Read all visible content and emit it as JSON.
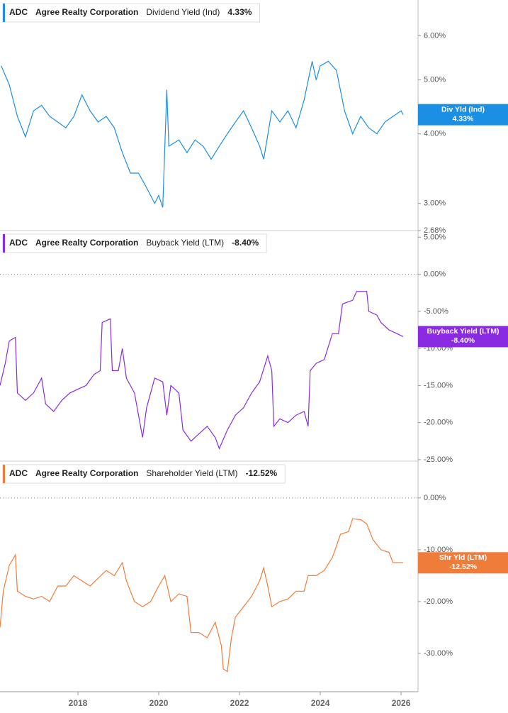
{
  "chart_data": [
    {
      "type": "line",
      "ticker": "ADC",
      "company": "Agree Realty Corporation",
      "log_scale": true,
      "badge_title": "Div Yld (Ind)",
      "last_value": 4.33,
      "last_label": "4.33%",
      "xlim": [
        2016.07,
        2026.42
      ],
      "ylim": [
        2.68,
        6.96
      ],
      "yticks": [
        {
          "value": 6,
          "label": "6.00%"
        },
        {
          "value": 5,
          "label": "5.00%"
        },
        {
          "value": 4,
          "label": "4.00%"
        },
        {
          "value": 3,
          "label": "3.00%"
        },
        {
          "value": 2.68,
          "label": "2.68%"
        }
      ],
      "x": [
        2016.1,
        2016.3,
        2016.5,
        2016.7,
        2016.9,
        2017.1,
        2017.3,
        2017.5,
        2017.7,
        2017.9,
        2018.1,
        2018.3,
        2018.5,
        2018.7,
        2018.9,
        2019.1,
        2019.3,
        2019.5,
        2019.7,
        2019.9,
        2020.0,
        2020.1,
        2020.2,
        2020.25,
        2020.5,
        2020.7,
        2020.9,
        2021.1,
        2021.3,
        2021.5,
        2021.7,
        2021.9,
        2022.1,
        2022.3,
        2022.5,
        2022.6,
        2022.8,
        2023.0,
        2023.2,
        2023.4,
        2023.6,
        2023.8,
        2023.9,
        2024.0,
        2024.2,
        2024.4,
        2024.6,
        2024.8,
        2025.0,
        2025.2,
        2025.4,
        2025.6,
        2025.8,
        2026.0,
        2026.05
      ],
      "series": [
        {
          "name": "Dividend Yield (Ind)",
          "color": "#1a8fe3",
          "values": [
            5.3,
            4.9,
            4.3,
            3.95,
            4.4,
            4.5,
            4.3,
            4.2,
            4.1,
            4.3,
            4.7,
            4.4,
            4.2,
            4.3,
            4.1,
            3.7,
            3.4,
            3.4,
            3.2,
            3.0,
            3.1,
            2.95,
            4.8,
            3.8,
            3.9,
            3.7,
            3.9,
            3.8,
            3.6,
            3.8,
            4.0,
            4.2,
            4.4,
            4.1,
            3.8,
            3.6,
            4.4,
            4.2,
            4.4,
            4.1,
            4.6,
            5.4,
            5.0,
            5.3,
            5.4,
            5.2,
            4.4,
            4.0,
            4.3,
            4.1,
            4.0,
            4.2,
            4.3,
            4.4,
            4.33
          ]
        }
      ]
    },
    {
      "type": "line",
      "ticker": "ADC",
      "company": "Agree Realty Corporation",
      "zero_line": true,
      "badge_title": "Buyback Yield (LTM)",
      "last_value": -8.4,
      "last_label": "-8.40%",
      "xlim": [
        2016.07,
        2026.42
      ],
      "ylim": [
        -25.2,
        5.9
      ],
      "yticks": [
        {
          "value": 5,
          "label": "5.00%"
        },
        {
          "value": 0,
          "label": "0.00%"
        },
        {
          "value": -5,
          "label": "-5.00%"
        },
        {
          "value": -10,
          "label": "-10.00%"
        },
        {
          "value": -15,
          "label": "-15.00%"
        },
        {
          "value": -20,
          "label": "-20.00%"
        },
        {
          "value": -25,
          "label": "-25.00%"
        }
      ],
      "x": [
        2016.07,
        2016.2,
        2016.3,
        2016.45,
        2016.5,
        2016.7,
        2016.9,
        2017.1,
        2017.2,
        2017.4,
        2017.6,
        2017.8,
        2018.0,
        2018.2,
        2018.4,
        2018.55,
        2018.6,
        2018.8,
        2018.85,
        2019.0,
        2019.1,
        2019.2,
        2019.4,
        2019.6,
        2019.7,
        2019.9,
        2020.1,
        2020.2,
        2020.3,
        2020.5,
        2020.6,
        2020.8,
        2021.0,
        2021.2,
        2021.4,
        2021.5,
        2021.7,
        2021.9,
        2022.1,
        2022.3,
        2022.5,
        2022.7,
        2022.8,
        2022.85,
        2023.0,
        2023.2,
        2023.4,
        2023.6,
        2023.7,
        2023.75,
        2023.9,
        2024.1,
        2024.3,
        2024.45,
        2024.55,
        2024.8,
        2024.9,
        2025.15,
        2025.2,
        2025.4,
        2025.5,
        2025.7,
        2025.9,
        2026.05
      ],
      "series": [
        {
          "name": "Buyback Yield (LTM)",
          "color": "#8a2be2",
          "values": [
            -15,
            -12,
            -9,
            -8.5,
            -16,
            -17,
            -16,
            -14,
            -17.5,
            -18.5,
            -17,
            -16,
            -15.5,
            -15,
            -13.5,
            -13,
            -6.5,
            -6,
            -13,
            -13,
            -10,
            -14,
            -16,
            -22,
            -18,
            -14,
            -14.5,
            -19,
            -15,
            -16,
            -21,
            -22.5,
            -21.5,
            -20.5,
            -22,
            -23.5,
            -21,
            -19,
            -18,
            -16,
            -14.5,
            -11,
            -13,
            -20.5,
            -19.5,
            -20,
            -19,
            -18.5,
            -20.5,
            -13,
            -12,
            -11.5,
            -8,
            -8,
            -4,
            -3.5,
            -2.3,
            -2.3,
            -5,
            -5.5,
            -6.5,
            -7.5,
            -8,
            -8.4
          ]
        }
      ]
    },
    {
      "type": "line",
      "ticker": "ADC",
      "company": "Agree Realty Corporation",
      "zero_line": true,
      "badge_title": "Shr Yld (LTM)",
      "last_value": -12.52,
      "last_label": "-12.52%",
      "xlim": [
        2016.07,
        2026.42
      ],
      "ylim": [
        -37.4,
        7.1
      ],
      "xticks": [
        2018,
        2020,
        2022,
        2024,
        2026
      ],
      "yticks": [
        {
          "value": 0,
          "label": "0.00%"
        },
        {
          "value": -10,
          "label": "-10.00%"
        },
        {
          "value": -20,
          "label": "-20.00%"
        },
        {
          "value": -30,
          "label": "-30.00%"
        }
      ],
      "x": [
        2016.07,
        2016.15,
        2016.3,
        2016.45,
        2016.5,
        2016.7,
        2016.9,
        2017.1,
        2017.3,
        2017.5,
        2017.7,
        2017.9,
        2018.1,
        2018.3,
        2018.5,
        2018.7,
        2018.9,
        2019.1,
        2019.2,
        2019.4,
        2019.6,
        2019.8,
        2020.0,
        2020.15,
        2020.3,
        2020.5,
        2020.7,
        2020.8,
        2021.0,
        2021.2,
        2021.4,
        2021.55,
        2021.6,
        2021.7,
        2021.8,
        2021.9,
        2022.1,
        2022.3,
        2022.5,
        2022.6,
        2022.7,
        2022.8,
        2023.0,
        2023.2,
        2023.4,
        2023.6,
        2023.7,
        2023.9,
        2024.1,
        2024.3,
        2024.5,
        2024.7,
        2024.8,
        2025.0,
        2025.15,
        2025.3,
        2025.5,
        2025.7,
        2025.8,
        2026.05
      ],
      "series": [
        {
          "name": "Shareholder Yield (LTM)",
          "color": "#f07c3a",
          "values": [
            -25,
            -18,
            -13,
            -11,
            -18,
            -19,
            -19.5,
            -19,
            -20,
            -17,
            -17,
            -15,
            -16,
            -17,
            -15.5,
            -14,
            -15,
            -12.5,
            -16,
            -20,
            -21,
            -20,
            -17,
            -15,
            -20,
            -18.5,
            -19,
            -26,
            -26,
            -27,
            -24,
            -28.5,
            -33,
            -33.5,
            -27,
            -23,
            -21,
            -19,
            -16,
            -13.5,
            -17,
            -21,
            -20,
            -19.5,
            -18,
            -18,
            -15,
            -15,
            -14,
            -11.5,
            -7,
            -6.5,
            -4,
            -4.2,
            -5,
            -8,
            -10,
            -10.5,
            -12.5,
            -12.5
          ]
        }
      ]
    }
  ]
}
